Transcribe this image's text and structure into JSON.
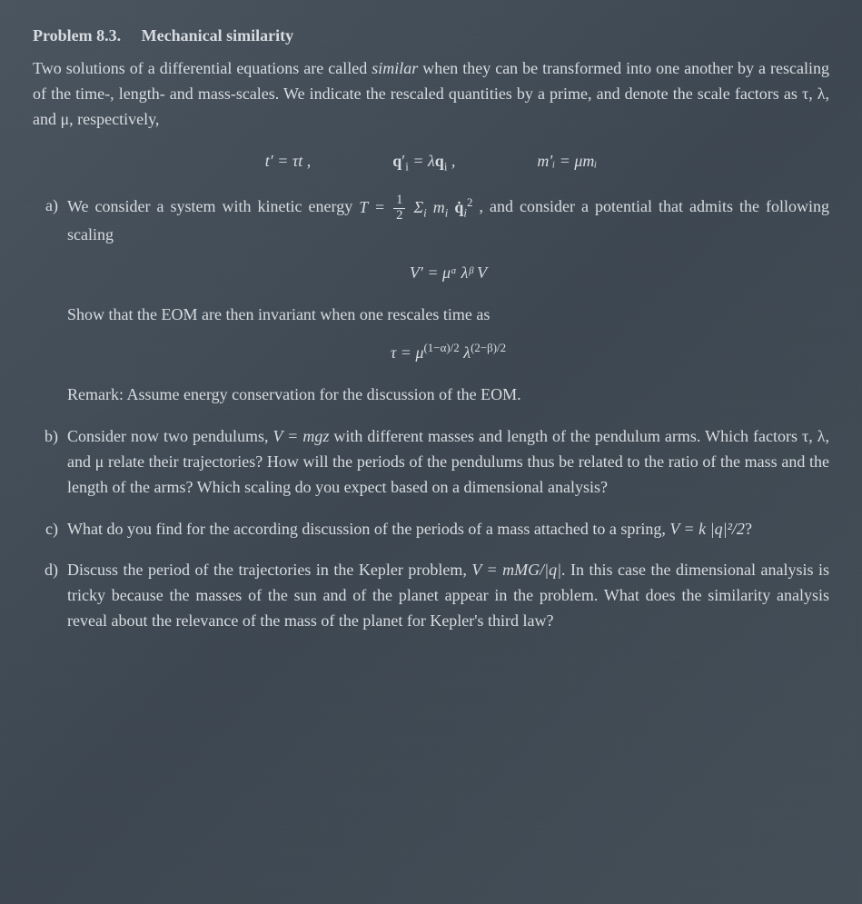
{
  "colors": {
    "background_from": "#4a5560",
    "background_to": "#454f58",
    "text": "#d8dce0"
  },
  "typography": {
    "font_family": "Computer Modern / serif",
    "body_fontsize_pt": 13,
    "line_height": 1.55,
    "heading_weight": "bold"
  },
  "header": {
    "problem_number": "Problem 8.3.",
    "title": "Mechanical similarity"
  },
  "intro": {
    "p1": "Two solutions of a differential equations are called ",
    "similar_word": "similar",
    "p1b": " when they can be transformed into one another by a rescaling of the time-, length- and mass-scales. We indicate the rescaled quantities by a prime, and denote the scale factors as τ, λ, and μ, respectively,"
  },
  "scaledefs": {
    "time": "t′ = τt ,",
    "length_lhs": "q",
    "length_sub": "i",
    "length_mid": " = λ",
    "length_rhs": "q",
    "length_tail": " ,",
    "mass": "m′ᵢ = μmᵢ"
  },
  "parts": {
    "a": {
      "label": "a)",
      "lead": "We consider a system with kinetic energy ",
      "T_expr_pre": "T = ",
      "sum_text": "Σ",
      "sum_sub": "i",
      "mi": " m",
      "qi": " q̇",
      "tail": ", and consider a potential that admits the following scaling",
      "eq_V": "V′ = μᵅ λᵝ V",
      "show_text": "Show that the EOM are then invariant when one rescales time as",
      "eq_tau_lhs": "τ = μ",
      "eq_tau_exp1": "(1−α)/2",
      "eq_tau_mid": " λ",
      "eq_tau_exp2": "(2−β)/2",
      "remark": "Remark: Assume energy conservation for the discussion of the EOM."
    },
    "b": {
      "label": "b)",
      "text_pre": "Consider now two pendulums, ",
      "V_expr": "V = mgz",
      "text_post": " with different masses and length of the pendulum arms. Which factors τ, λ, and μ relate their trajectories? How will the periods of the pendulums thus be related to the ratio of the mass and the length of the arms? Which scaling do you expect based on a dimensional analysis?"
    },
    "c": {
      "label": "c)",
      "text_pre": "What do you find for the according discussion of the periods of a mass attached to a spring, ",
      "V_expr": "V = k |q|²/2",
      "q": "?"
    },
    "d": {
      "label": "d)",
      "text_pre": "Discuss the period of the trajectories in the Kepler problem, ",
      "V_expr": "V = mMG/|q|",
      "text_post": ". In this case the dimensional analysis is tricky because the masses of the sun and of the planet appear in the problem. What does the similarity analysis reveal about the relevance of the mass of the planet for Kepler's third law?"
    }
  }
}
